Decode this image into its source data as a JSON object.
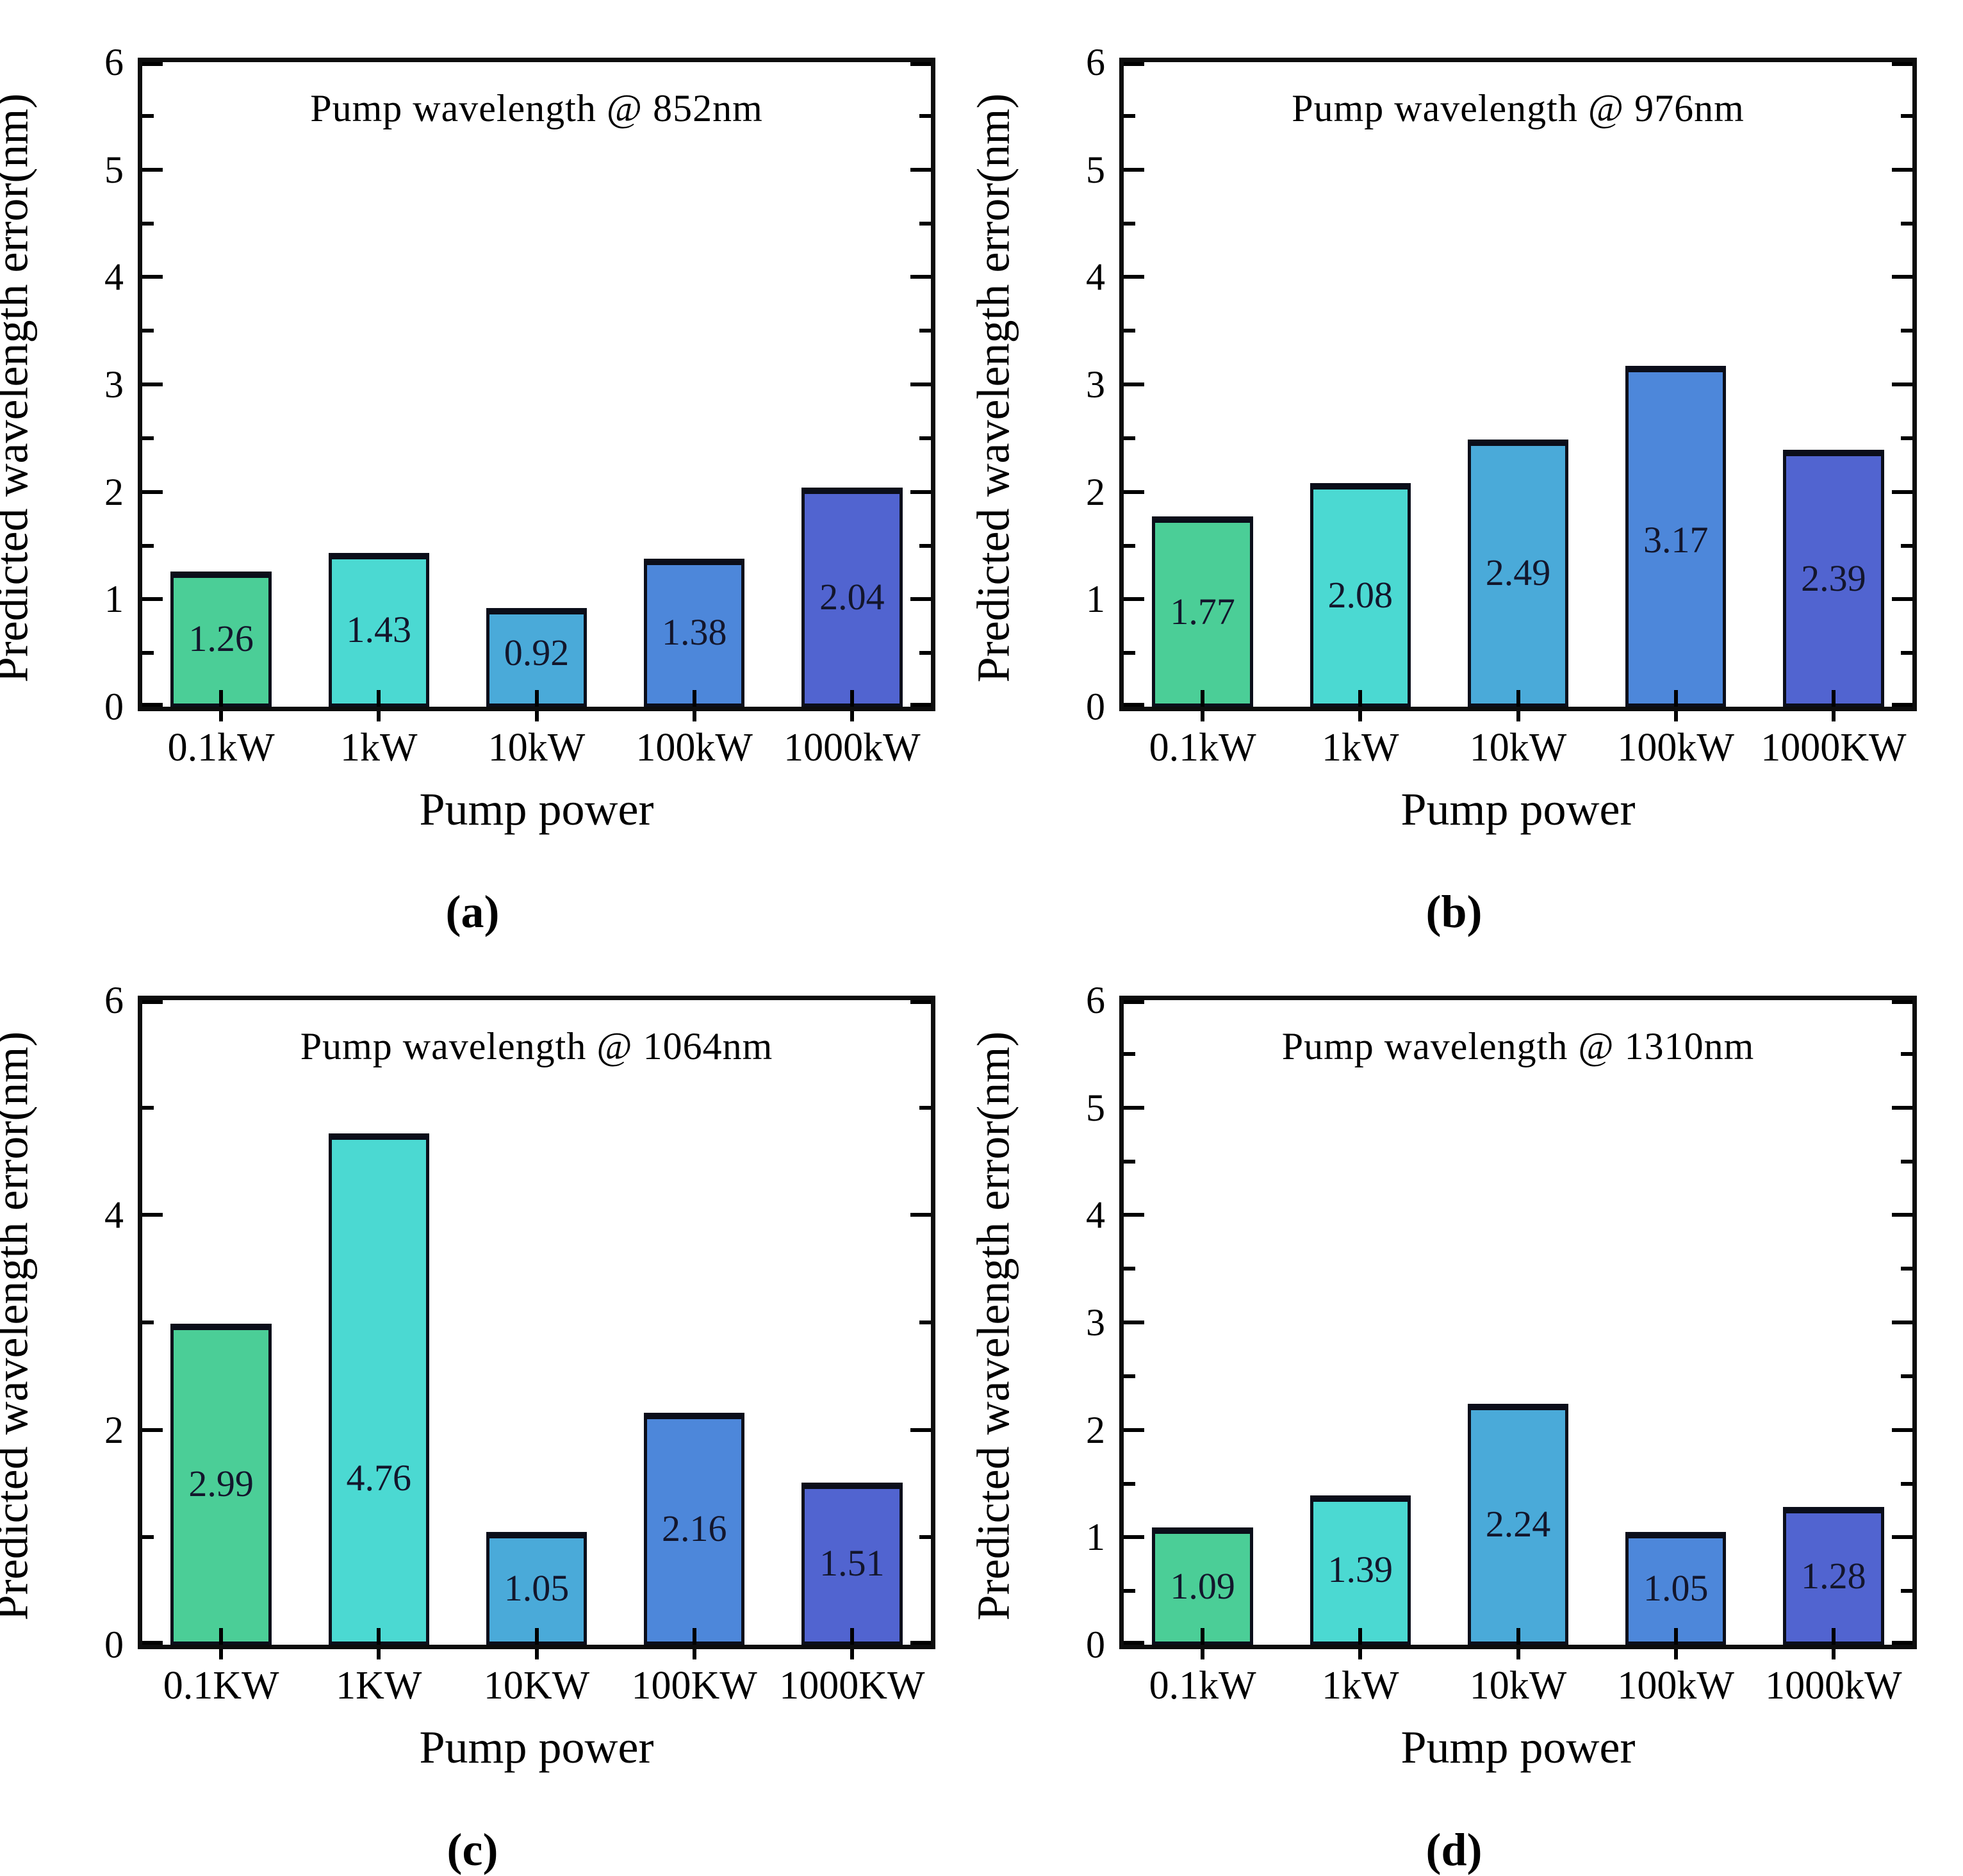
{
  "figure_labels": {
    "ylabel": "Predicted wavelength error(nm)",
    "xlabel": "Pump power"
  },
  "palette": {
    "bar_fill_colors": [
      "#4bce97",
      "#4bd9d2",
      "#4aaad9",
      "#4d87da",
      "#5164d0"
    ],
    "bar_edge_color": "#0b0e1a",
    "value_label_color": "#13162c",
    "axis_color": "#0d0d0d"
  },
  "chart_data": [
    {
      "type": "bar",
      "panel_label": "(a)",
      "title": "Pump wavelength @ 852nm",
      "categories": [
        "0.1kW",
        "1kW",
        "10kW",
        "100kW",
        "1000kW"
      ],
      "values": [
        1.26,
        1.43,
        0.92,
        1.38,
        2.04
      ],
      "bar_labels": [
        "1.26",
        "1.43",
        "0.92",
        "1.38",
        "2.04"
      ],
      "xlabel": "Pump power",
      "ylabel": "Predicted wavelength error(nm)",
      "ylim": [
        0,
        6
      ],
      "ytick_labels": [
        "0",
        "1",
        "2",
        "3",
        "4",
        "5",
        "6"
      ],
      "ytick_values": [
        0,
        1,
        2,
        3,
        4,
        5,
        6
      ],
      "y_minor_step": 0.5,
      "grid": false,
      "legend": false
    },
    {
      "type": "bar",
      "panel_label": "(b)",
      "title": "Pump wavelength @ 976nm",
      "categories": [
        "0.1kW",
        "1kW",
        "10kW",
        "100kW",
        "1000KW"
      ],
      "values": [
        1.77,
        2.08,
        2.49,
        3.17,
        2.39
      ],
      "bar_labels": [
        "1.77",
        "2.08",
        "2.49",
        "3.17",
        "2.39"
      ],
      "xlabel": "Pump power",
      "ylabel": "Predicted wavelength error(nm)",
      "ylim": [
        0,
        6
      ],
      "ytick_labels": [
        "0",
        "1",
        "2",
        "3",
        "4",
        "5",
        "6"
      ],
      "ytick_values": [
        0,
        1,
        2,
        3,
        4,
        5,
        6
      ],
      "y_minor_step": 0.5,
      "grid": false,
      "legend": false
    },
    {
      "type": "bar",
      "panel_label": "(c)",
      "title": "Pump wavelength @ 1064nm",
      "categories": [
        "0.1KW",
        "1KW",
        "10KW",
        "100KW",
        "1000KW"
      ],
      "values": [
        2.99,
        4.76,
        1.05,
        2.16,
        1.51
      ],
      "bar_labels": [
        "2.99",
        "4.76",
        "1.05",
        "2.16",
        "1.51"
      ],
      "xlabel": "Pump power",
      "ylabel": "Predicted wavelength error(nm)",
      "ylim": [
        0,
        6
      ],
      "ytick_labels": [
        "0",
        "2",
        "4",
        "6"
      ],
      "ytick_values": [
        0,
        2,
        4,
        6
      ],
      "y_minor_step": 1,
      "grid": false,
      "legend": false
    },
    {
      "type": "bar",
      "panel_label": "(d)",
      "title": "Pump wavelength @ 1310nm",
      "categories": [
        "0.1kW",
        "1kW",
        "10kW",
        "100kW",
        "1000kW"
      ],
      "values": [
        1.09,
        1.39,
        2.24,
        1.05,
        1.28
      ],
      "bar_labels": [
        "1.09",
        "1.39",
        "2.24",
        "1.05",
        "1.28"
      ],
      "xlabel": "Pump power",
      "ylabel": "Predicted wavelength error(nm)",
      "ylim": [
        0,
        6
      ],
      "ytick_labels": [
        "0",
        "1",
        "2",
        "3",
        "4",
        "5",
        "6"
      ],
      "ytick_values": [
        0,
        1,
        2,
        3,
        4,
        5,
        6
      ],
      "y_minor_step": 0.5,
      "grid": false,
      "legend": false
    }
  ]
}
